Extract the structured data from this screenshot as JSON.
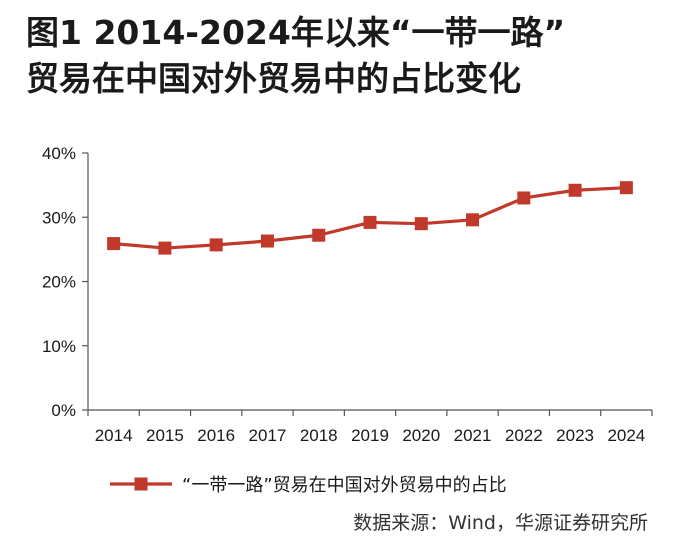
{
  "title": {
    "line1": "图1  2014-2024年以来“一带一路”",
    "line2": "贸易在中国对外贸易中的占比变化"
  },
  "source": "数据来源：Wind，华源证券研究所",
  "colors": {
    "series": "#c0392b",
    "axis": "#555555",
    "text": "#1a1a1a"
  },
  "chart_data": {
    "type": "line",
    "title": "图1  2014-2024年以来“一带一路”贸易在中国对外贸易中的占比变化",
    "xlabel": "",
    "ylabel": "",
    "categories": [
      "2014",
      "2015",
      "2016",
      "2017",
      "2018",
      "2019",
      "2020",
      "2021",
      "2022",
      "2023",
      "2024"
    ],
    "series": [
      {
        "name": "“一带一路”贸易在中国对外贸易中的占比",
        "values": [
          25.9,
          25.2,
          25.7,
          26.3,
          27.2,
          29.2,
          29.0,
          29.6,
          33.0,
          34.2,
          34.6
        ],
        "marker": "square"
      }
    ],
    "ylim": [
      0,
      40
    ],
    "yticks": [
      "0%",
      "10%",
      "20%",
      "30%",
      "40%"
    ],
    "grid": false,
    "legend": "bottom"
  }
}
